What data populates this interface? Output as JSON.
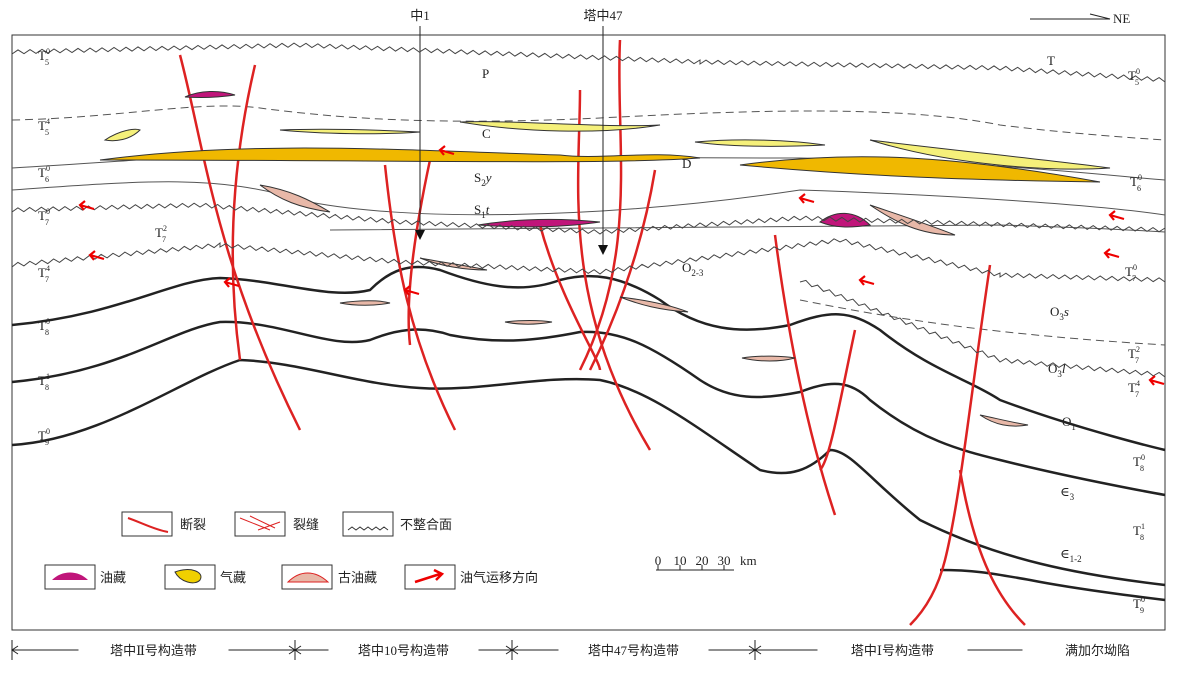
{
  "wells": [
    "中1",
    "塔中47"
  ],
  "compass": "NE",
  "horizons_left": [
    {
      "base": "T",
      "sup": "0",
      "sub": "5"
    },
    {
      "base": "T",
      "sup": "4",
      "sub": "5"
    },
    {
      "base": "T",
      "sup": "0",
      "sub": "6"
    },
    {
      "base": "T",
      "sup": "0",
      "sub": "7"
    },
    {
      "base": "T",
      "sup": "2",
      "sub": "7"
    },
    {
      "base": "T",
      "sup": "4",
      "sub": "7"
    },
    {
      "base": "T",
      "sup": "0",
      "sub": "8"
    },
    {
      "base": "T",
      "sup": "1",
      "sub": "8"
    },
    {
      "base": "T",
      "sup": "0",
      "sub": "9"
    }
  ],
  "horizons_right": [
    {
      "base": "T",
      "sup": "0",
      "sub": "5"
    },
    {
      "base": "T",
      "sup": "0",
      "sub": "6"
    },
    {
      "base": "T",
      "sup": "0",
      "sub": "7"
    },
    {
      "base": "T",
      "sup": "2",
      "sub": "7"
    },
    {
      "base": "T",
      "sup": "4",
      "sub": "7"
    },
    {
      "base": "T",
      "sup": "0",
      "sub": "8"
    },
    {
      "base": "T",
      "sup": "1",
      "sub": "8"
    },
    {
      "base": "T",
      "sup": "0",
      "sub": "9"
    }
  ],
  "strata": [
    {
      "base": "T"
    },
    {
      "base": "P"
    },
    {
      "base": "C"
    },
    {
      "base": "D"
    },
    {
      "base": "S",
      "sub": "2",
      "tail": "y"
    },
    {
      "base": "S",
      "sub": "1",
      "tail": "t"
    },
    {
      "base": "O",
      "sub": "2-3"
    },
    {
      "base": "O",
      "sub": "3",
      "tail": "s"
    },
    {
      "base": "O",
      "sub": "3",
      "tail": "l"
    },
    {
      "base": "O",
      "sub": "1"
    },
    {
      "base": "∈",
      "sub": "3"
    },
    {
      "base": "∈",
      "sub": "1-2"
    }
  ],
  "legend": [
    "断裂",
    "裂缝",
    "不整合面",
    "油藏",
    "气藏",
    "古油藏",
    "油气运移方向"
  ],
  "scale": {
    "ticks": [
      0,
      10,
      20,
      30
    ],
    "unit": "km"
  },
  "zones": [
    "塔中Ⅱ号构造带",
    "塔中10号构造带",
    "塔中47号构造带",
    "塔中Ⅰ号构造带",
    "满加尔坳陷"
  ]
}
